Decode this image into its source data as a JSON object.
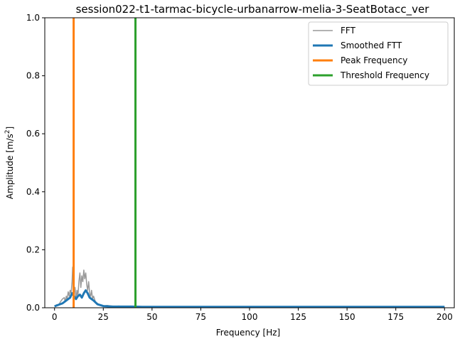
{
  "chart_data": {
    "type": "line",
    "title": "session022-t1-tarmac-bicycle-urbanarrow-melia-3-SeatBotacc_ver",
    "xlabel": "Frequency [Hz]",
    "ylabel_main": "Amplitude [m/s",
    "ylabel_sup": "2",
    "ylabel_tail": "]",
    "xlim": [
      -5,
      205
    ],
    "ylim": [
      0,
      1.0
    ],
    "xticks": [
      0,
      25,
      50,
      75,
      100,
      125,
      150,
      175,
      200
    ],
    "yticks": [
      0.0,
      0.2,
      0.4,
      0.6,
      0.8,
      1.0
    ],
    "ytick_labels": [
      "0.0",
      "0.2",
      "0.4",
      "0.6",
      "0.8",
      "1.0"
    ],
    "grid": false,
    "legend_position": "top-right",
    "series": [
      {
        "name": "FFT",
        "color": "#999999",
        "x": [
          0,
          1,
          2,
          3,
          4,
          5,
          5.5,
          6,
          6.5,
          7,
          7.5,
          8,
          8.5,
          9,
          9.3,
          9.6,
          10,
          10.5,
          11,
          11.5,
          12,
          12.5,
          13,
          13.5,
          14,
          14.5,
          15,
          15.5,
          16,
          16.5,
          17,
          17.5,
          18,
          18.5,
          19,
          19.5,
          20,
          21,
          22,
          23,
          24,
          25,
          27,
          30,
          33,
          36,
          39,
          42,
          45,
          50,
          60,
          75,
          100,
          125,
          150,
          175,
          200
        ],
        "y": [
          0.005,
          0.01,
          0.008,
          0.02,
          0.03,
          0.035,
          0.02,
          0.04,
          0.03,
          0.055,
          0.04,
          0.06,
          0.05,
          0.09,
          0.14,
          0.1,
          0.05,
          0.07,
          0.03,
          0.06,
          0.04,
          0.09,
          0.12,
          0.07,
          0.11,
          0.09,
          0.13,
          0.1,
          0.12,
          0.08,
          0.06,
          0.09,
          0.05,
          0.04,
          0.06,
          0.03,
          0.04,
          0.02,
          0.015,
          0.01,
          0.008,
          0.006,
          0.008,
          0.005,
          0.006,
          0.004,
          0.006,
          0.005,
          0.004,
          0.004,
          0.003,
          0.003,
          0.003,
          0.003,
          0.003,
          0.003,
          0.003
        ]
      },
      {
        "name": "Smoothed FTT",
        "color": "#1f77b4",
        "x": [
          0,
          2,
          4,
          6,
          8,
          9,
          10,
          11,
          12,
          13,
          14,
          15,
          16,
          17,
          18,
          19,
          20,
          22,
          25,
          30,
          35,
          40,
          45,
          50,
          75,
          100,
          125,
          150,
          175,
          200
        ],
        "y": [
          0.005,
          0.01,
          0.015,
          0.025,
          0.035,
          0.05,
          0.04,
          0.03,
          0.04,
          0.045,
          0.035,
          0.05,
          0.06,
          0.05,
          0.035,
          0.03,
          0.025,
          0.012,
          0.006,
          0.004,
          0.004,
          0.004,
          0.003,
          0.003,
          0.003,
          0.003,
          0.003,
          0.003,
          0.003,
          0.003
        ]
      },
      {
        "name": "Peak Frequency",
        "color": "#ff7f0e",
        "vline": 9.8
      },
      {
        "name": "Threshold Frequency",
        "color": "#2ca02c",
        "vline": 41.5
      }
    ]
  }
}
